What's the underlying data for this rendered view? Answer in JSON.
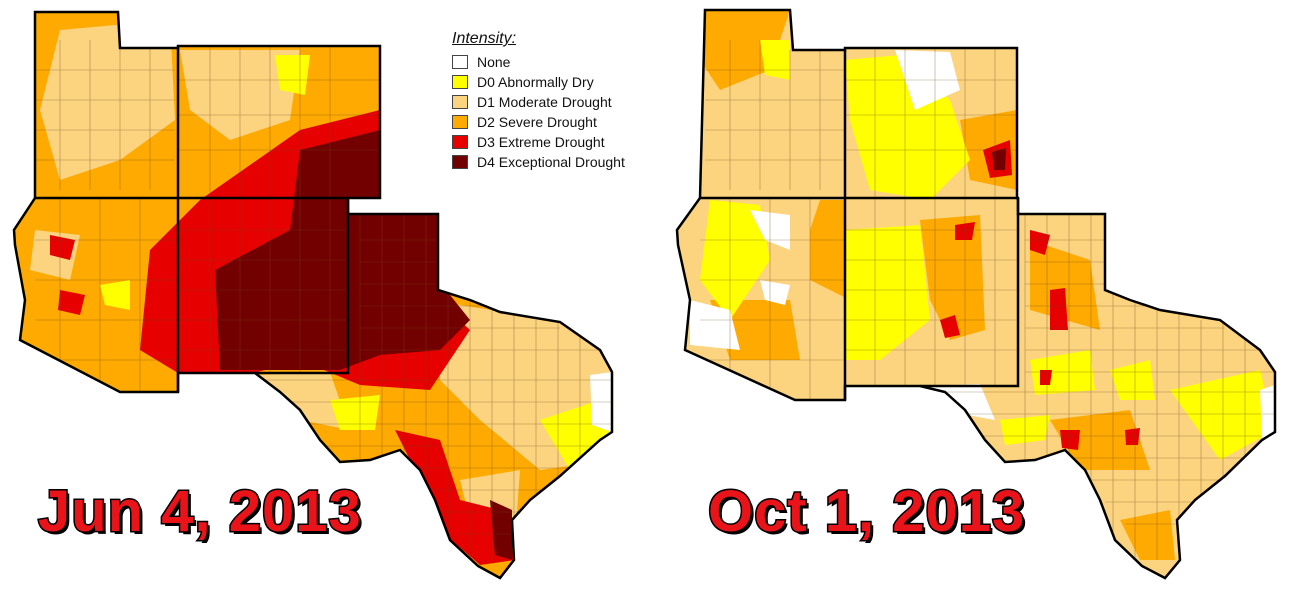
{
  "legend": {
    "title": "Intensity:",
    "items": [
      {
        "label": "None",
        "color": "#ffffff"
      },
      {
        "label": "D0 Abnormally Dry",
        "color": "#ffff00"
      },
      {
        "label": "D1 Moderate Drought",
        "color": "#fcd37f"
      },
      {
        "label": "D2 Severe Drought",
        "color": "#ffaa00"
      },
      {
        "label": "D3 Extreme Drought",
        "color": "#e60000"
      },
      {
        "label": "D4 Exceptional Drought",
        "color": "#730000"
      }
    ]
  },
  "maps": [
    {
      "date": "Jun 4, 2013"
    },
    {
      "date": "Oct 1, 2013"
    }
  ]
}
